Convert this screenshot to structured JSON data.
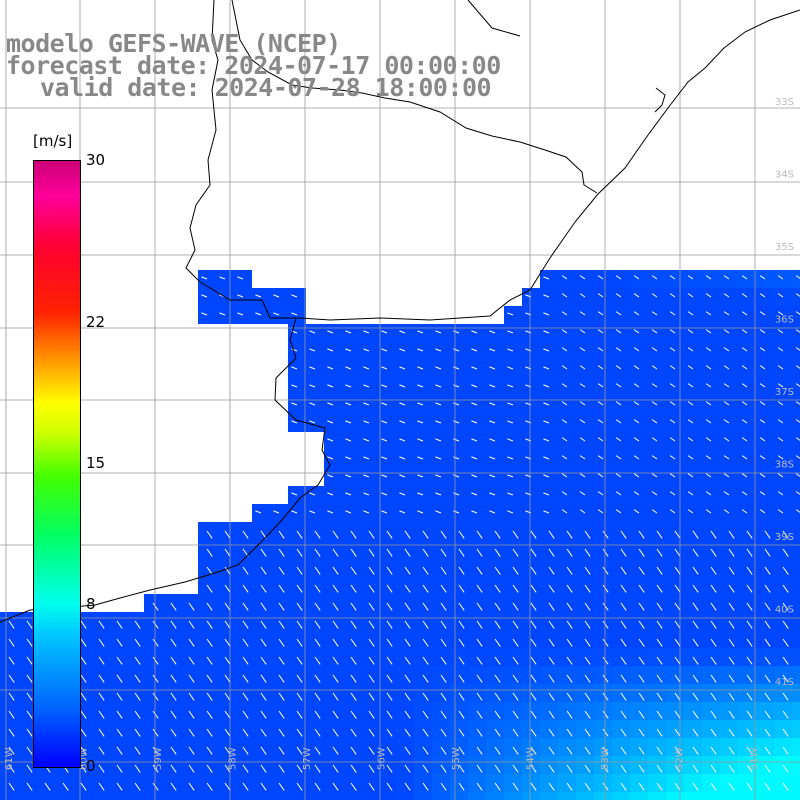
{
  "title": {
    "model": "modelo GEFS-WAVE (NCEP)",
    "forecast": "forecast date: 2024-07-17 00:00:00",
    "valid": "valid date: 2024-07-28 18:00:00"
  },
  "colorbar": {
    "unit": "[m/s]",
    "ticks": [
      {
        "label": "30",
        "value": 30
      },
      {
        "label": "22",
        "value": 22
      },
      {
        "label": "15",
        "value": 15
      },
      {
        "label": "8",
        "value": 8
      },
      {
        "label": "0",
        "value": 0
      }
    ],
    "stops": [
      "#0000ff",
      "#00c8ff",
      "#00ffee",
      "#00ff66",
      "#ffff00",
      "#ff2200",
      "#cc0077"
    ]
  },
  "grid": {
    "lat_labels": [
      "33S",
      "34S",
      "35S",
      "36S",
      "37S",
      "38S",
      "39S",
      "40S",
      "41S"
    ],
    "lon_labels": [
      "61W",
      "60W",
      "59W",
      "58W",
      "57W",
      "56W",
      "55W",
      "54W",
      "53W",
      "52W",
      "51W"
    ]
  },
  "field": {
    "variable": "wind",
    "arrows": "white"
  }
}
